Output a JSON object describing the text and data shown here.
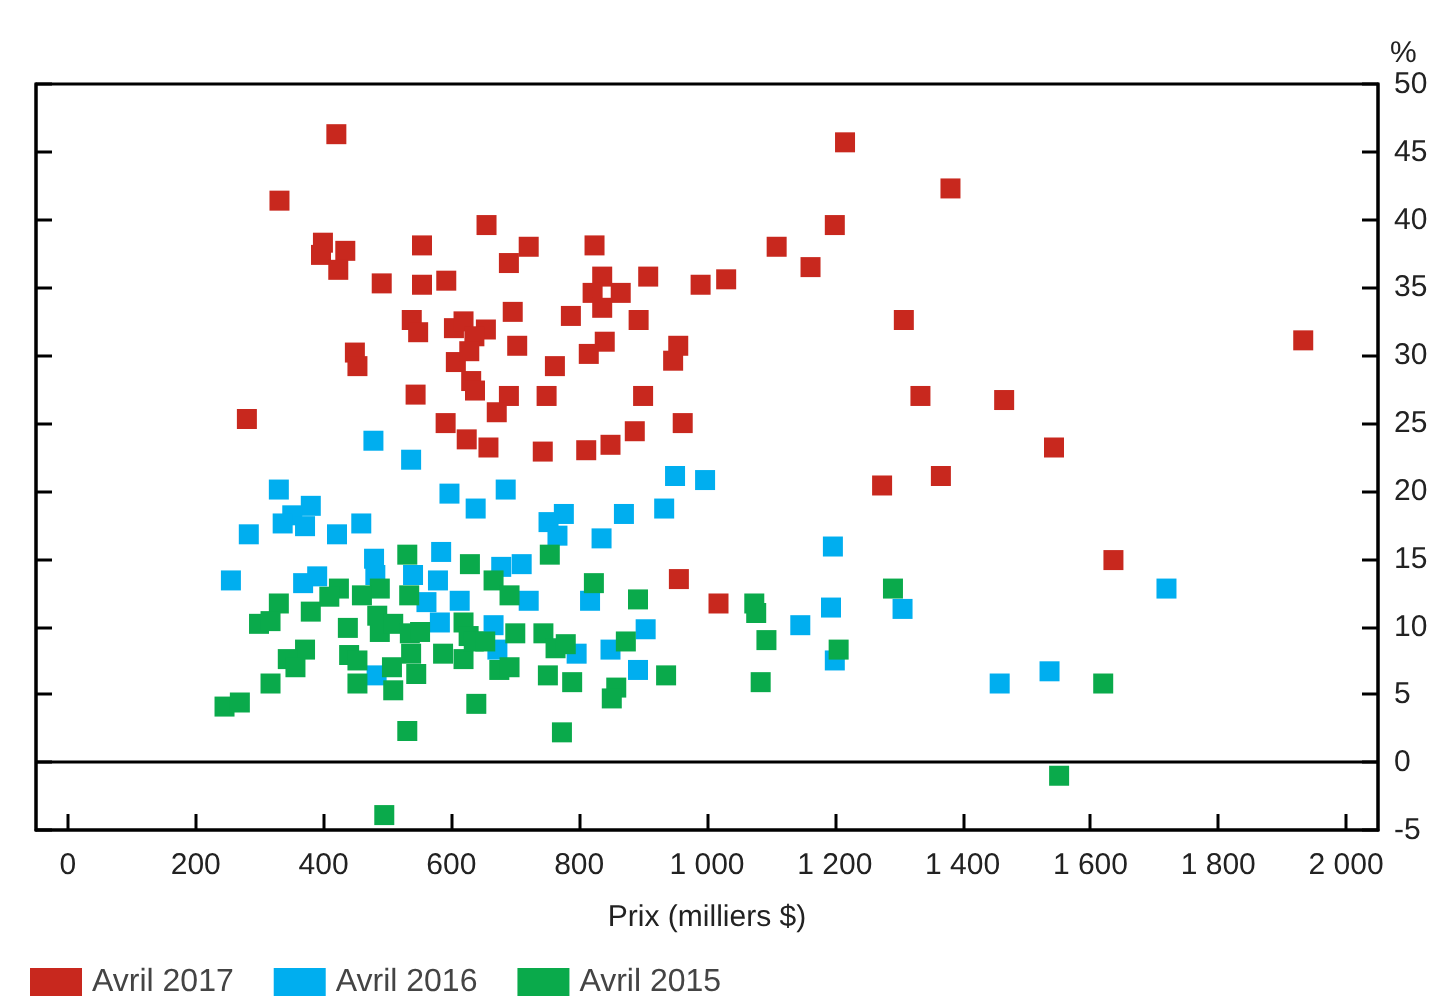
{
  "chart_data": {
    "type": "scatter",
    "xlabel": "Prix (milliers $)",
    "ylabel": "%",
    "marker": "square",
    "grid": false,
    "legend": "bottom left",
    "xlim": [
      -50,
      2050
    ],
    "xticks": [
      0,
      200,
      400,
      600,
      800,
      {
        "value": 1000,
        "label": "1 000"
      },
      {
        "value": 1200,
        "label": "1 200"
      },
      {
        "value": 1400,
        "label": "1 400"
      },
      {
        "value": 1600,
        "label": "1 600"
      },
      {
        "value": 1800,
        "label": "1 800"
      },
      {
        "value": 2000,
        "label": "2 000"
      }
    ],
    "ylim": [
      -5,
      50
    ],
    "yticks": [
      -5,
      0,
      5,
      10,
      15,
      20,
      25,
      30,
      35,
      40,
      45,
      50
    ],
    "ref_lines": [
      {
        "axis": "y",
        "value": 0,
        "color": "#000000"
      }
    ],
    "series": [
      {
        "name": "Avril 2017",
        "color": "#c8281e",
        "x": [
          280,
          331,
          420,
          399,
          396,
          434,
          423,
          554,
          491,
          554,
          592,
          538,
          548,
          604,
          449,
          453,
          607,
          544,
          591,
          1216,
          1381,
          655,
          721,
          824,
          690,
          836,
          908,
          821,
          865,
          836,
          990,
          1030,
          1109,
          1200,
          1162,
          1308,
          1334,
          696,
          787,
          893,
          619,
          654,
          636,
          628,
          703,
          840,
          815,
          762,
          955,
          947,
          631,
          637,
          690,
          749,
          900,
          671,
          624,
          658,
          743,
          811,
          849,
          887,
          962,
          956,
          1018,
          1274,
          1366,
          1465,
          1543,
          1636,
          1933
        ],
        "values": [
          25.3,
          41.4,
          46.3,
          38.3,
          37.4,
          37.7,
          36.3,
          38.1,
          35.3,
          35.2,
          35.5,
          32.6,
          31.7,
          32.0,
          30.2,
          29.2,
          29.5,
          27.1,
          25.0,
          45.7,
          42.3,
          39.6,
          38.0,
          38.1,
          36.8,
          35.8,
          35.8,
          34.6,
          34.6,
          33.5,
          35.2,
          35.6,
          38.0,
          39.6,
          36.5,
          32.6,
          27.0,
          33.2,
          32.9,
          32.6,
          32.5,
          31.9,
          31.4,
          30.3,
          30.7,
          31.0,
          30.1,
          29.2,
          30.7,
          29.6,
          28.1,
          27.4,
          27.0,
          27.0,
          27.0,
          25.8,
          23.8,
          23.2,
          22.9,
          23.0,
          23.4,
          24.4,
          25.0,
          13.5,
          11.7,
          20.4,
          21.1,
          26.7,
          23.2,
          14.9,
          31.1
        ]
      },
      {
        "name": "Avril 2016",
        "color": "#00aeef",
        "x": [
          478,
          537,
          330,
          380,
          351,
          336,
          371,
          283,
          421,
          459,
          597,
          255,
          368,
          390,
          479,
          481,
          584,
          579,
          540,
          613,
          582,
          483,
          561,
          950,
          997,
          685,
          638,
          776,
          870,
          933,
          752,
          766,
          835,
          1197,
          710,
          678,
          721,
          817,
          1194,
          1306,
          1146,
          904,
          666,
          672,
          796,
          849,
          892,
          1200,
          1458,
          1536,
          1719
        ],
        "values": [
          23.7,
          22.3,
          20.1,
          18.9,
          18.2,
          17.6,
          17.4,
          16.8,
          16.8,
          17.6,
          19.8,
          13.4,
          13.2,
          13.7,
          15.0,
          13.8,
          15.5,
          13.4,
          13.8,
          11.9,
          10.3,
          6.4,
          11.8,
          21.1,
          20.8,
          20.1,
          18.7,
          18.3,
          18.3,
          18.7,
          17.7,
          16.7,
          16.5,
          15.9,
          14.6,
          14.4,
          11.9,
          11.9,
          11.4,
          11.3,
          10.1,
          9.8,
          10.1,
          8.3,
          8.0,
          8.3,
          6.8,
          7.5,
          5.8,
          6.7,
          12.8
        ]
      },
      {
        "name": "Avril 2015",
        "color": "#0aaa4b",
        "x": [
          531,
          629,
          424,
          409,
          488,
          460,
          534,
          330,
          380,
          299,
          317,
          438,
          484,
          488,
          509,
          535,
          551,
          619,
          627,
          371,
          344,
          356,
          440,
          453,
          537,
          507,
          545,
          587,
          619,
          317,
          453,
          509,
          245,
          269,
          531,
          495,
          639,
          754,
          666,
          691,
          823,
          892,
          1291,
          1074,
          1077,
          700,
          744,
          763,
          779,
          873,
          1093,
          1206,
          635,
          653,
          675,
          691,
          751,
          789,
          936,
          858,
          851,
          1084,
          773,
          1620,
          1551
        ],
        "values": [
          15.3,
          14.6,
          12.8,
          12.2,
          12.8,
          12.3,
          12.3,
          11.7,
          11.1,
          10.2,
          10.4,
          9.9,
          10.8,
          9.6,
          10.2,
          9.5,
          9.6,
          10.3,
          9.3,
          8.3,
          7.6,
          7.0,
          7.9,
          7.5,
          8.0,
          7.0,
          6.5,
          8.0,
          7.6,
          5.8,
          5.8,
          5.3,
          4.1,
          4.4,
          2.3,
          -3.9,
          4.3,
          15.3,
          13.4,
          12.3,
          13.2,
          12.0,
          12.8,
          11.7,
          11.0,
          9.5,
          9.5,
          8.4,
          8.7,
          8.9,
          9.0,
          8.3,
          8.9,
          8.9,
          6.8,
          7.0,
          6.4,
          5.9,
          6.4,
          5.5,
          4.7,
          5.9,
          2.2,
          5.8,
          -1.0
        ]
      }
    ]
  }
}
